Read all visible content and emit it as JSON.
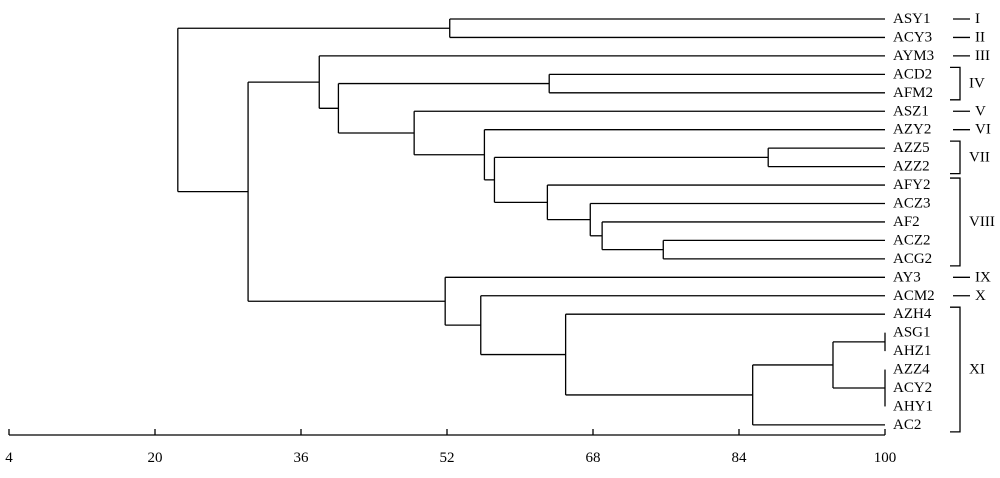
{
  "chart_data": {
    "type": "dendrogram",
    "xlim": [
      4,
      100
    ],
    "ticks": [
      "4",
      "20",
      "36",
      "52",
      "68",
      "84",
      "100"
    ],
    "leaves": [
      "ASY1",
      "ACY3",
      "AYM3",
      "ACD2",
      "AFM2",
      "ASZ1",
      "AZY2",
      "AZZ5",
      "AZZ2",
      "AFY2",
      "ACZ3",
      "AF2",
      "ACZ2",
      "ACG2",
      "AY3",
      "ACM2",
      "AZH4",
      "ASG1",
      "AHZ1",
      "AZZ4",
      "ACY2",
      "AHY1",
      "AC2"
    ],
    "merges": [
      {
        "id": "n1",
        "children": [
          "ASY1",
          "ACY3"
        ],
        "similarity": 52.3
      },
      {
        "id": "n2",
        "children": [
          "ACD2",
          "AFM2"
        ],
        "similarity": 63.2
      },
      {
        "id": "n3",
        "children": [
          "AZZ5",
          "AZZ2"
        ],
        "similarity": 87.2
      },
      {
        "id": "n4",
        "children": [
          "ACZ2",
          "ACG2"
        ],
        "similarity": 75.7
      },
      {
        "id": "n5",
        "children": [
          "AF2",
          "n4"
        ],
        "similarity": 69.0
      },
      {
        "id": "n6",
        "children": [
          "ACZ3",
          "n5"
        ],
        "similarity": 67.7
      },
      {
        "id": "n7",
        "children": [
          "AFY2",
          "n6"
        ],
        "similarity": 63.0
      },
      {
        "id": "n8",
        "children": [
          "n3",
          "n7"
        ],
        "similarity": 57.2
      },
      {
        "id": "n9",
        "children": [
          "AZY2",
          "n8"
        ],
        "similarity": 56.1
      },
      {
        "id": "n10",
        "children": [
          "ASZ1",
          "n9"
        ],
        "similarity": 48.4
      },
      {
        "id": "n11",
        "children": [
          "n2",
          "n10"
        ],
        "similarity": 40.1
      },
      {
        "id": "n12",
        "children": [
          "AYM3",
          "n11"
        ],
        "similarity": 38.0
      },
      {
        "id": "n13",
        "children": [
          "ASG1",
          "AHZ1"
        ],
        "similarity": 100
      },
      {
        "id": "n14",
        "children": [
          "AZZ4",
          "ACY2",
          "AHY1"
        ],
        "similarity": 100
      },
      {
        "id": "n15",
        "children": [
          "n13",
          "n14"
        ],
        "similarity": 94.3
      },
      {
        "id": "n16",
        "children": [
          "n15",
          "AC2"
        ],
        "similarity": 85.5
      },
      {
        "id": "n17",
        "children": [
          "AZH4",
          "n16"
        ],
        "similarity": 65.0
      },
      {
        "id": "n18",
        "children": [
          "ACM2",
          "n17"
        ],
        "similarity": 55.7
      },
      {
        "id": "n19",
        "children": [
          "AY3",
          "n18"
        ],
        "similarity": 51.8
      },
      {
        "id": "n20",
        "children": [
          "n12",
          "n19"
        ],
        "similarity": 30.2
      },
      {
        "id": "n21",
        "children": [
          "n1",
          "n20"
        ],
        "similarity": 22.5
      }
    ],
    "groups": [
      {
        "name": "I",
        "from": "ASY1",
        "to": "ASY1"
      },
      {
        "name": "II",
        "from": "ACY3",
        "to": "ACY3"
      },
      {
        "name": "III",
        "from": "AYM3",
        "to": "AYM3"
      },
      {
        "name": "IV",
        "from": "ACD2",
        "to": "AFM2"
      },
      {
        "name": "V",
        "from": "ASZ1",
        "to": "ASZ1"
      },
      {
        "name": "VI",
        "from": "AZY2",
        "to": "AZY2"
      },
      {
        "name": "VII",
        "from": "AZZ5",
        "to": "AZZ2"
      },
      {
        "name": "VIII",
        "from": "AFY2",
        "to": "ACG2"
      },
      {
        "name": "IX",
        "from": "AY3",
        "to": "AY3"
      },
      {
        "name": "X",
        "from": "ACM2",
        "to": "ACM2"
      },
      {
        "name": "XI",
        "from": "AZH4",
        "to": "AC2"
      }
    ]
  }
}
